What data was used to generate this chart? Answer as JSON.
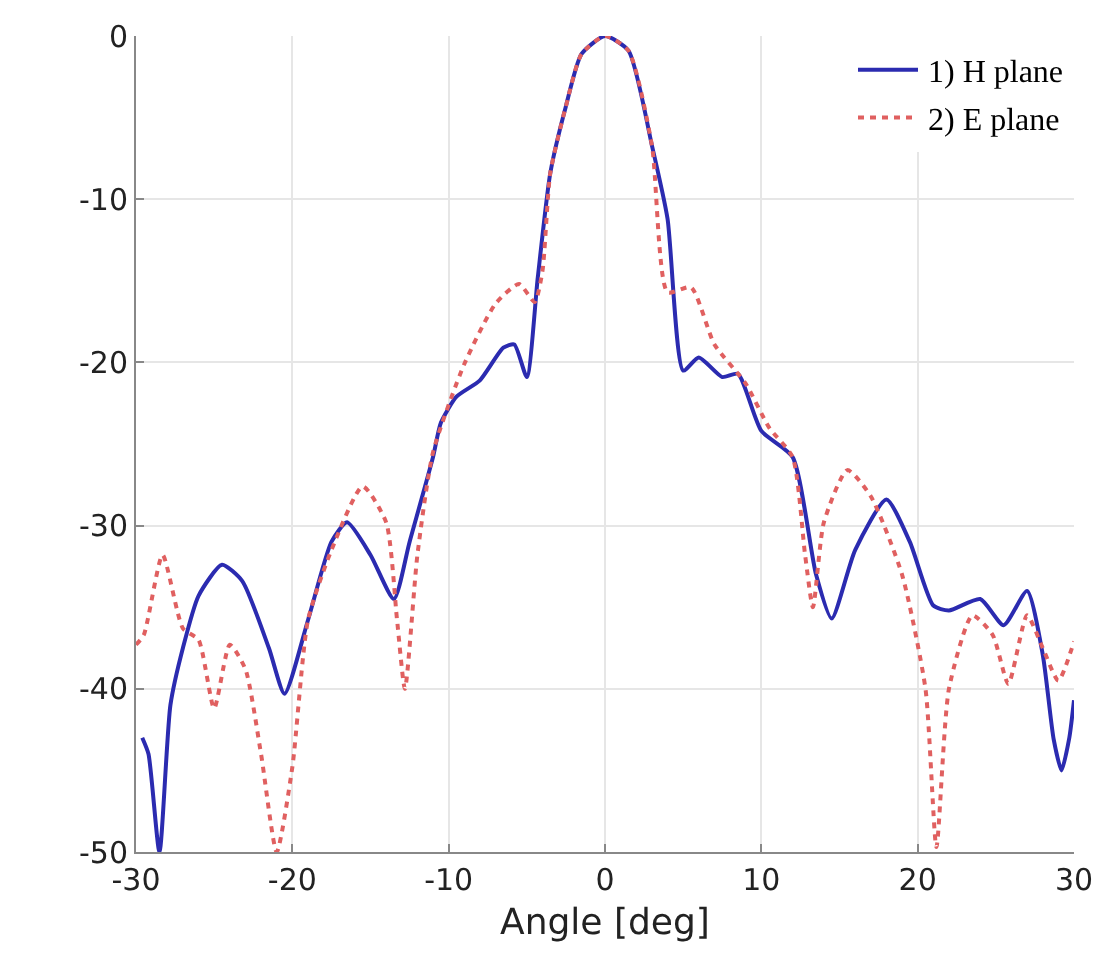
{
  "chart_data": {
    "type": "line",
    "xlabel": "Angle [deg]",
    "xlim": [
      -30,
      30
    ],
    "xticks": [
      -30,
      -20,
      -10,
      0,
      10,
      20,
      30
    ],
    "ylim": [
      -50,
      0
    ],
    "yticks": [
      -50,
      -40,
      -30,
      -20,
      -10,
      0
    ],
    "grid": true,
    "legend": "top right",
    "marker": "none",
    "series": [
      {
        "name": "1) H plane",
        "color": "#2b2bb0",
        "line_style": "solid",
        "x": [
          -29.6,
          -29.2,
          -28.5,
          -27.8,
          -27,
          -26,
          -24.5,
          -23.2,
          -21.5,
          -20.5,
          -19,
          -17.5,
          -16.5,
          -15,
          -13.5,
          -12.5,
          -11,
          -10.5,
          -9.5,
          -8,
          -6.5,
          -5.8,
          -5,
          -4.3,
          -3.5,
          -2.5,
          -1.5,
          0,
          1.5,
          3,
          4,
          5,
          6,
          7.5,
          8.5,
          10,
          12,
          13.5,
          14.5,
          16,
          18,
          19.5,
          21,
          22,
          24,
          25.5,
          27,
          28,
          28.7,
          29.2,
          29.7,
          30
        ],
        "values": [
          -43,
          -44,
          -50,
          -41,
          -37.5,
          -34.3,
          -32.4,
          -33.4,
          -37.5,
          -40.3,
          -35.8,
          -31,
          -29.8,
          -31.8,
          -34.5,
          -31,
          -25.8,
          -23.7,
          -22.1,
          -21.1,
          -19.1,
          -18.9,
          -20.9,
          -14.8,
          -8.4,
          -4.3,
          -1.1,
          0,
          -0.9,
          -6.7,
          -11.2,
          -20.5,
          -19.7,
          -20.9,
          -20.7,
          -24.2,
          -25.8,
          -33,
          -35.7,
          -31.5,
          -28.4,
          -31,
          -34.9,
          -35.2,
          -34.5,
          -36.1,
          -34,
          -37.9,
          -43.1,
          -45,
          -43,
          -40.7
        ]
      },
      {
        "name": "2) E plane",
        "color": "#e06060",
        "line_style": "dotted",
        "x": [
          -30,
          -29.5,
          -28.3,
          -27,
          -26,
          -25,
          -24,
          -23,
          -22,
          -21,
          -20,
          -19,
          -17.5,
          -15.5,
          -14,
          -13.3,
          -12.8,
          -12,
          -11,
          -9,
          -7,
          -5.5,
          -4.5,
          -4,
          -3.5,
          -2.5,
          -1.5,
          0,
          1.5,
          3,
          4,
          5.5,
          7,
          9,
          10.5,
          12,
          12.8,
          13.3,
          14,
          15.5,
          17,
          19,
          20.5,
          21.2,
          22,
          23.5,
          24.8,
          25.8,
          27,
          28,
          29,
          30
        ],
        "values": [
          -37.3,
          -36.7,
          -31.8,
          -36.3,
          -37,
          -41.2,
          -37.3,
          -38.8,
          -44,
          -50,
          -44.8,
          -35.8,
          -31.5,
          -27.6,
          -29.8,
          -35.8,
          -40,
          -31.8,
          -25.5,
          -20.1,
          -16.4,
          -15.2,
          -16.3,
          -14.4,
          -8.4,
          -4.3,
          -1.1,
          0,
          -0.9,
          -6.7,
          -15.7,
          -15.4,
          -18.9,
          -21.3,
          -24,
          -25.8,
          -31.8,
          -35,
          -29.8,
          -26.6,
          -28.2,
          -33,
          -40,
          -49.7,
          -40,
          -35.5,
          -36.7,
          -39.7,
          -35.5,
          -37.5,
          -39.5,
          -37.1
        ]
      }
    ]
  }
}
